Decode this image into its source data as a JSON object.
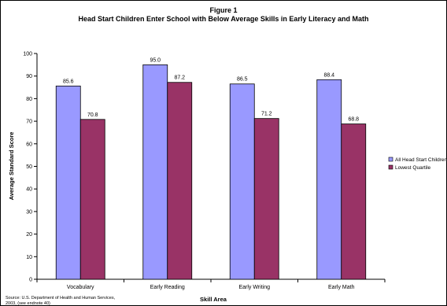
{
  "chart_data": {
    "type": "bar",
    "title": "Figure 1",
    "subtitle": "Head Start Children Enter School with Below Average Skills in Early Literacy and Math",
    "xlabel": "Skill Area",
    "ylabel": "Average Standard Score",
    "categories": [
      "Vocabulary",
      "Early Reading",
      "Early Writing",
      "Early Math"
    ],
    "series": [
      {
        "name": "All Head Start Children",
        "values": [
          85.6,
          95.0,
          86.5,
          88.4
        ],
        "labels": [
          "85.6",
          "95.0",
          "86.5",
          "88.4"
        ],
        "color": "#9999ff"
      },
      {
        "name": "Lowest Quartile",
        "values": [
          70.8,
          87.2,
          71.2,
          68.8
        ],
        "labels": [
          "70.8",
          "87.2",
          "71.2",
          "68.8"
        ],
        "color": "#993366"
      }
    ],
    "ylim": [
      0,
      100
    ],
    "yticks": [
      "0",
      "10",
      "20",
      "30",
      "40",
      "50",
      "60",
      "70",
      "80",
      "90",
      "100"
    ],
    "grid": false,
    "legend": "right",
    "source": "Source: U.S. Department of Health and Human Services, 2003, (see endnote 40)"
  }
}
